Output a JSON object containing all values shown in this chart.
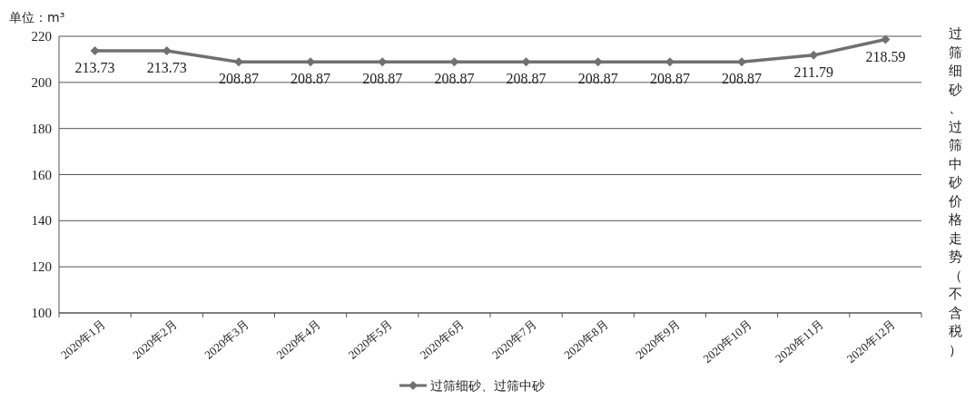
{
  "chart_data": {
    "type": "line",
    "title": "过筛细砂、过筛中砂价格走势（不含税）",
    "ylabel": "单位：m³",
    "categories": [
      "2020年1月",
      "2020年2月",
      "2020年3月",
      "2020年4月",
      "2020年5月",
      "2020年6月",
      "2020年7月",
      "2020年8月",
      "2020年9月",
      "2020年10月",
      "2020年11月",
      "2020年12月"
    ],
    "series": [
      {
        "name": "过筛细砂、过筛中砂",
        "color": "#707070",
        "values": [
          213.73,
          213.73,
          208.87,
          208.87,
          208.87,
          208.87,
          208.87,
          208.87,
          208.87,
          208.87,
          211.79,
          218.59
        ]
      }
    ],
    "ylim": [
      100,
      220
    ],
    "yticks": [
      100,
      120,
      140,
      160,
      180,
      200,
      220
    ],
    "grid": "y",
    "data_labels": true,
    "legend": "bottom",
    "marker": "diamond",
    "line_style": "solid"
  }
}
